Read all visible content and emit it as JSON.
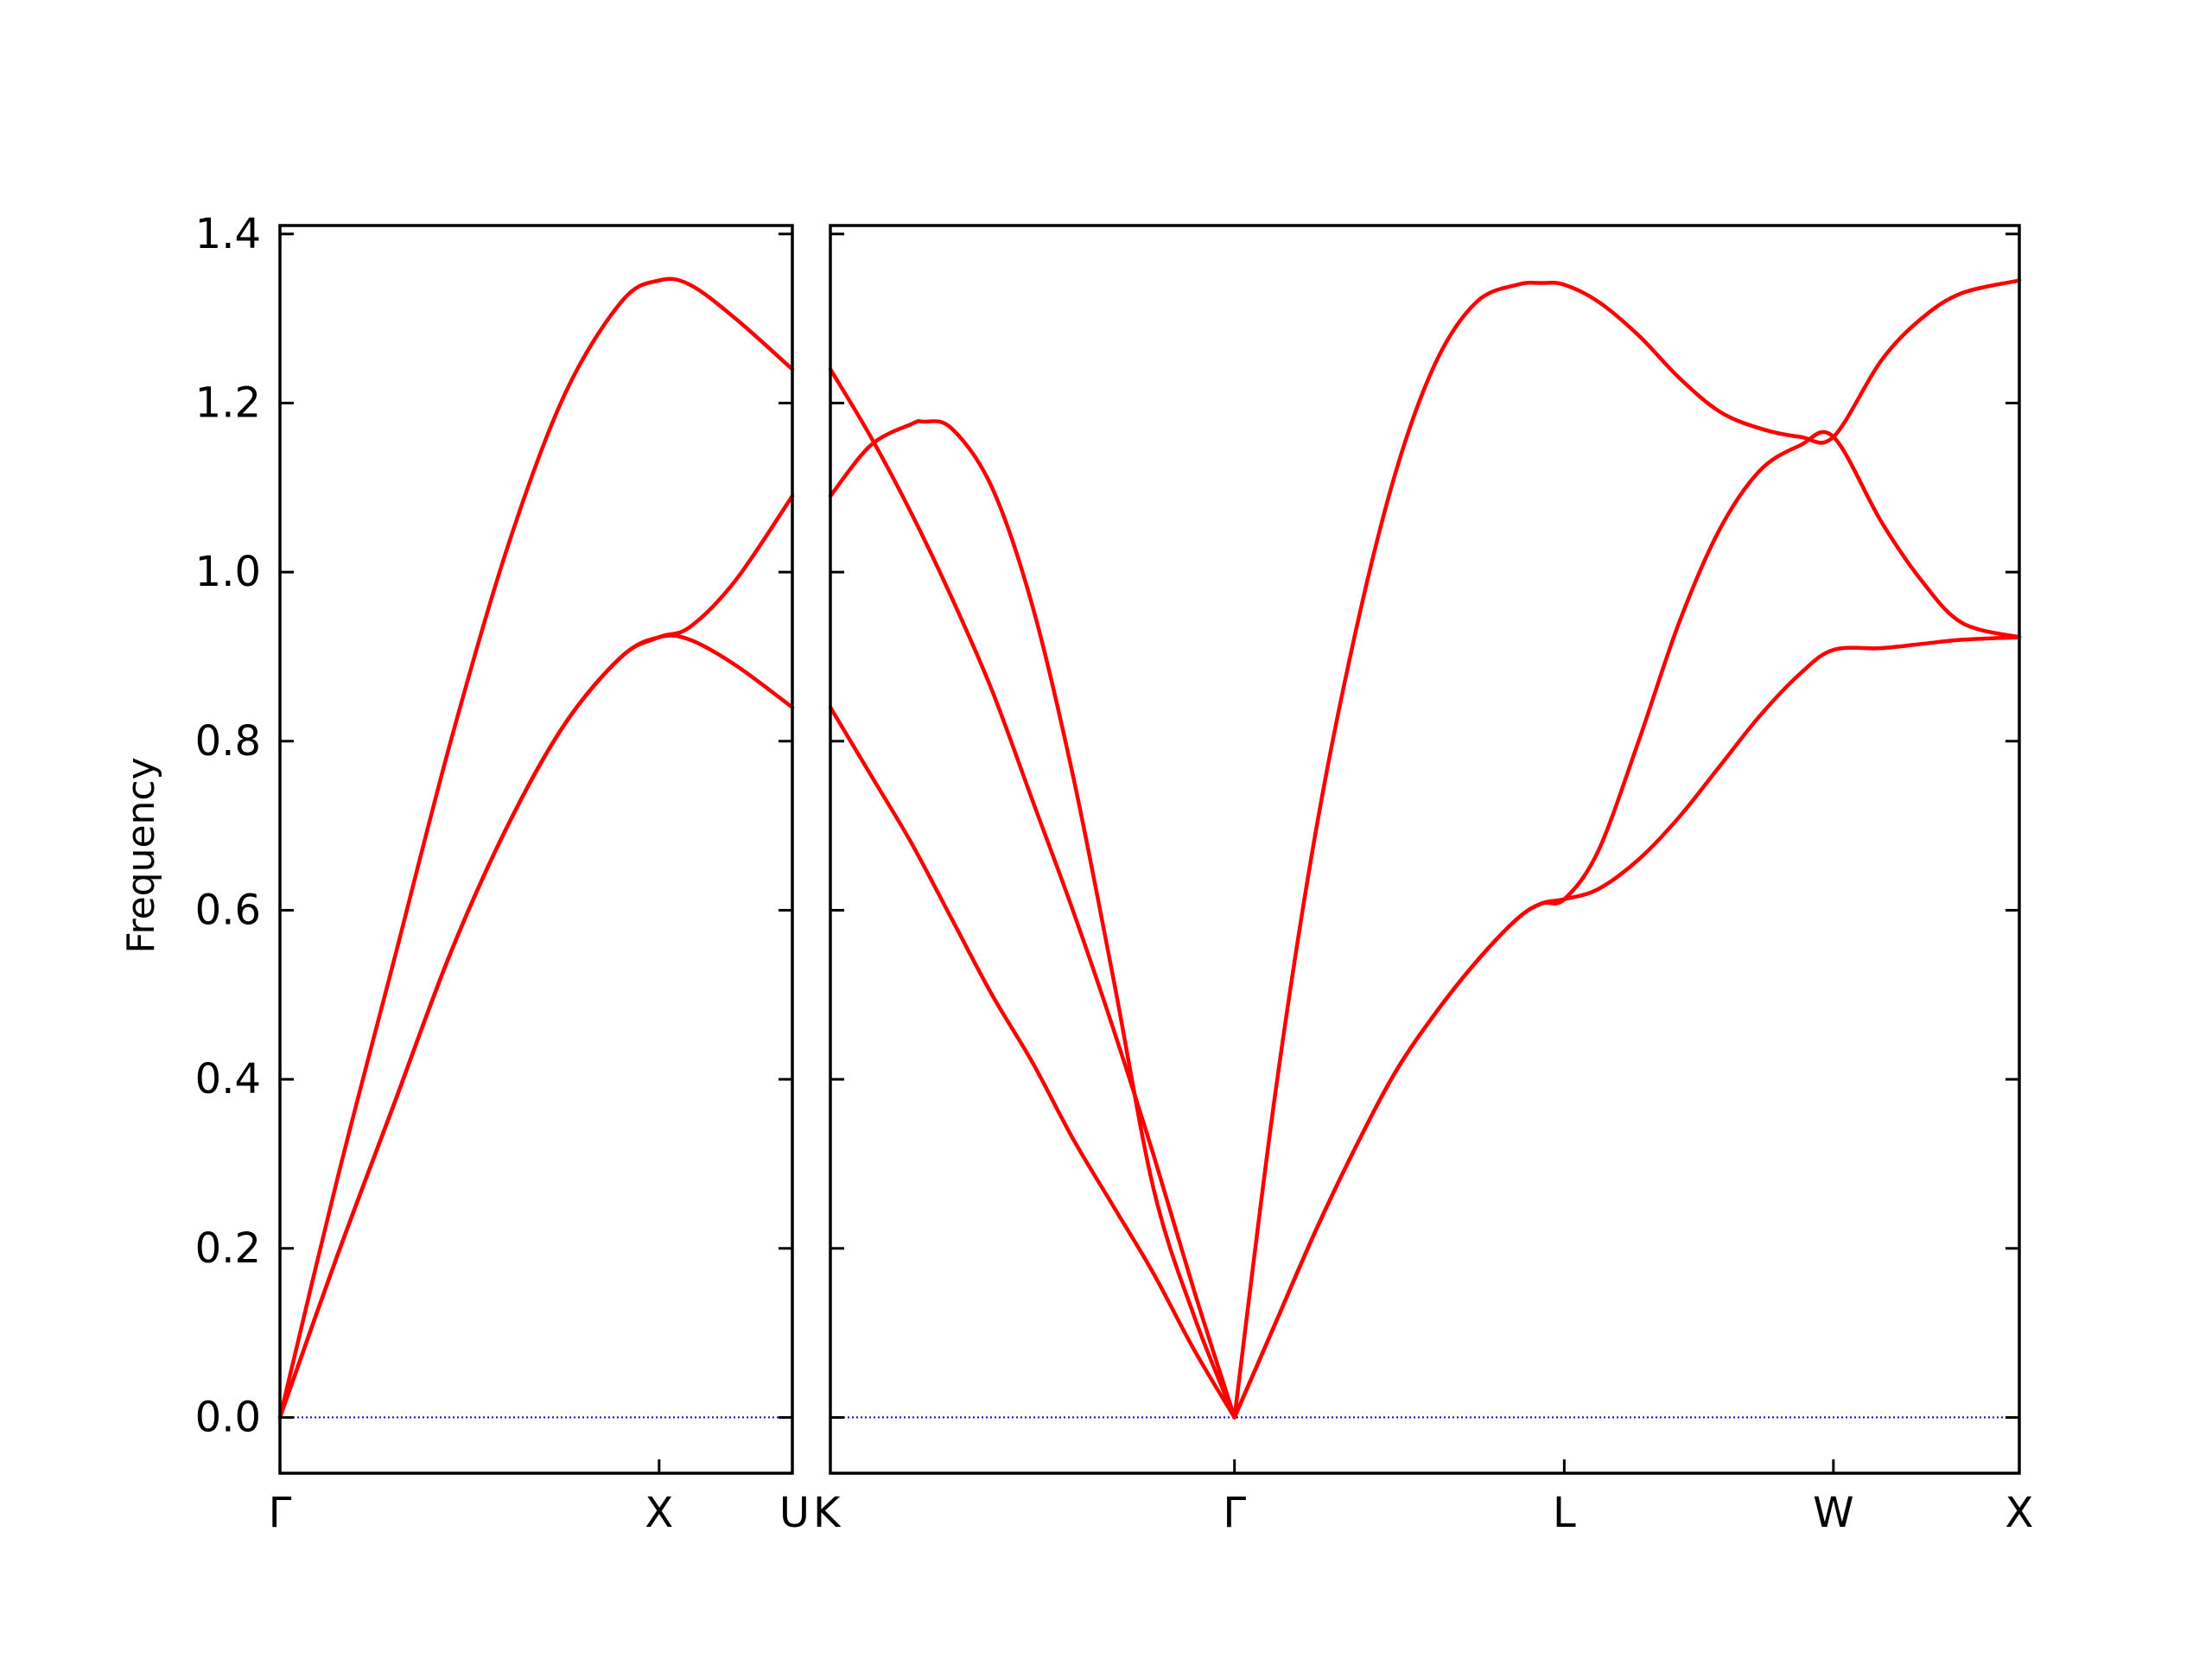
{
  "chart_data": {
    "type": "line",
    "ylabel": "Frequency",
    "ylim": [
      -0.066,
      1.41
    ],
    "yticks": [
      0.0,
      0.2,
      0.4,
      0.6,
      0.8,
      1.0,
      1.2,
      1.4
    ],
    "ytick_labels": [
      "0.0",
      "0.2",
      "0.4",
      "0.6",
      "0.8",
      "1.0",
      "1.2",
      "1.4"
    ],
    "grid": false,
    "legend": "none",
    "colors": {
      "bands": "#ff0000",
      "zero_line": "#0000cd",
      "axes": "#000000"
    },
    "panels": [
      {
        "xlim": [
          0,
          0.45
        ],
        "ticks": [
          {
            "x": 0.0,
            "label": "Γ"
          },
          {
            "x": 0.333,
            "label": "X"
          },
          {
            "x": 0.45,
            "label": "U"
          }
        ],
        "bands": [
          {
            "x": [
              0,
              0.05,
              0.1,
              0.15,
              0.2,
              0.25,
              0.3,
              0.333,
              0.36,
              0.4,
              0.45
            ],
            "y": [
              0,
              0.28,
              0.54,
              0.8,
              1.03,
              1.21,
              1.32,
              1.345,
              1.34,
              1.3,
              1.24
            ]
          },
          {
            "x": [
              0,
              0.05,
              0.1,
              0.15,
              0.2,
              0.25,
              0.3,
              0.333,
              0.36,
              0.4,
              0.45
            ],
            "y": [
              0,
              0.19,
              0.37,
              0.55,
              0.7,
              0.82,
              0.9,
              0.923,
              0.92,
              0.89,
              0.84
            ]
          },
          {
            "x": [
              0,
              0.05,
              0.1,
              0.15,
              0.2,
              0.25,
              0.3,
              0.333,
              0.36,
              0.4,
              0.45
            ],
            "y": [
              0,
              0.19,
              0.37,
              0.55,
              0.7,
              0.82,
              0.9,
              0.923,
              0.935,
              0.99,
              1.09
            ]
          }
        ]
      },
      {
        "xlim": [
          0,
          2.942
        ],
        "ticks": [
          {
            "x": 0.0,
            "label": "K"
          },
          {
            "x": 1.0,
            "label": "Γ"
          },
          {
            "x": 1.816,
            "label": "L"
          },
          {
            "x": 2.482,
            "label": "W"
          },
          {
            "x": 2.942,
            "label": "X"
          }
        ],
        "bands": [
          {
            "x": [
              0,
              0.1,
              0.2,
              0.3,
              0.4,
              0.5,
              0.6,
              0.7,
              0.8,
              0.9,
              1.0
            ],
            "y": [
              0.84,
              0.76,
              0.68,
              0.59,
              0.5,
              0.42,
              0.33,
              0.25,
              0.17,
              0.08,
              0
            ]
          },
          {
            "x": [
              0,
              0.1,
              0.2,
              0.3,
              0.4,
              0.5,
              0.6,
              0.7,
              0.8,
              0.9,
              1.0
            ],
            "y": [
              1.24,
              1.16,
              1.07,
              0.97,
              0.86,
              0.73,
              0.6,
              0.46,
              0.31,
              0.15,
              0
            ]
          },
          {
            "x": [
              0,
              0.1,
              0.2,
              0.23,
              0.3,
              0.4,
              0.5,
              0.6,
              0.7,
              0.8,
              0.9,
              1.0
            ],
            "y": [
              1.09,
              1.15,
              1.175,
              1.178,
              1.17,
              1.1,
              0.96,
              0.76,
              0.52,
              0.27,
              0.12,
              0
            ]
          },
          {
            "x": [
              1.0,
              1.1,
              1.2,
              1.3,
              1.4,
              1.5,
              1.6,
              1.7,
              1.76,
              1.816,
              1.9,
              2.0,
              2.1,
              2.2,
              2.3,
              2.4,
              2.482,
              2.6,
              2.7,
              2.8,
              2.942
            ],
            "y": [
              0,
              0.11,
              0.22,
              0.32,
              0.41,
              0.48,
              0.54,
              0.59,
              0.608,
              0.613,
              0.625,
              0.66,
              0.71,
              0.77,
              0.83,
              0.88,
              0.908,
              0.91,
              0.915,
              0.92,
              0.923
            ]
          },
          {
            "x": [
              1.0,
              1.1,
              1.2,
              1.3,
              1.4,
              1.5,
              1.6,
              1.7,
              1.76,
              1.816,
              1.9,
              2.0,
              2.1,
              2.2,
              2.3,
              2.4,
              2.482,
              2.6,
              2.7,
              2.8,
              2.942
            ],
            "y": [
              0,
              0.11,
              0.22,
              0.32,
              0.41,
              0.48,
              0.54,
              0.59,
              0.608,
              0.613,
              0.67,
              0.8,
              0.94,
              1.05,
              1.12,
              1.15,
              1.16,
              1.06,
              0.99,
              0.94,
              0.923
            ]
          },
          {
            "x": [
              1.0,
              1.1,
              1.2,
              1.3,
              1.4,
              1.5,
              1.6,
              1.7,
              1.76,
              1.816,
              1.9,
              2.0,
              2.1,
              2.2,
              2.3,
              2.4,
              2.482,
              2.6,
              2.7,
              2.8,
              2.942
            ],
            "y": [
              0,
              0.38,
              0.69,
              0.93,
              1.12,
              1.25,
              1.32,
              1.34,
              1.342,
              1.34,
              1.32,
              1.28,
              1.23,
              1.19,
              1.17,
              1.16,
              1.16,
              1.25,
              1.3,
              1.33,
              1.345
            ]
          }
        ]
      }
    ]
  }
}
